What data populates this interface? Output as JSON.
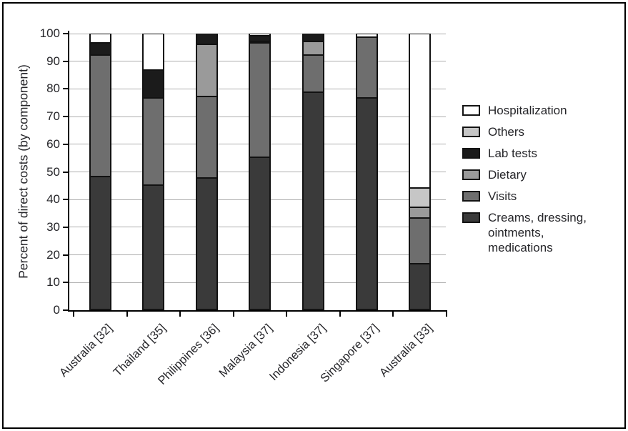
{
  "chart_data": {
    "type": "bar",
    "stacked": true,
    "title": "",
    "xlabel": "",
    "ylabel": "Percent of direct costs (by component)",
    "ylim": [
      0,
      100
    ],
    "yticks": [
      0,
      10,
      20,
      30,
      40,
      50,
      60,
      70,
      80,
      90,
      100
    ],
    "grid": "horizontal",
    "legend_position": "right",
    "categories": [
      "Australia [32]",
      "Thailand [35]",
      "Philippines [36]",
      "Malaysia [37]",
      "Indonesia [37]",
      "Singapore [37]",
      "Australia [33]"
    ],
    "series": [
      {
        "name": "Creams, dressing, ointments, medications",
        "color": "#3a3a3a",
        "values": [
          48,
          45,
          47.5,
          55,
          78.5,
          76.5,
          16.5
        ]
      },
      {
        "name": "Visits",
        "color": "#6e6e6e",
        "values": [
          44,
          31.5,
          29.5,
          41.5,
          13.5,
          22,
          16.5
        ]
      },
      {
        "name": "Dietary",
        "color": "#9a9a9a",
        "values": [
          0,
          0,
          19,
          0.5,
          5,
          0,
          4
        ]
      },
      {
        "name": "Lab tests",
        "color": "#1b1b1b",
        "values": [
          4.5,
          10,
          4,
          2,
          3,
          0,
          0
        ]
      },
      {
        "name": "Others",
        "color": "#c6c6c6",
        "values": [
          0,
          0,
          0,
          0,
          0,
          0,
          7
        ]
      },
      {
        "name": "Hospitalization",
        "color": "#ffffff",
        "values": [
          3.5,
          13.5,
          0,
          1,
          0,
          1.5,
          56
        ]
      }
    ]
  },
  "legend": {
    "items": [
      {
        "label": "Hospitalization",
        "color": "#ffffff"
      },
      {
        "label": "Others",
        "color": "#c6c6c6"
      },
      {
        "label": "Lab tests",
        "color": "#1b1b1b"
      },
      {
        "label": "Dietary",
        "color": "#9a9a9a"
      },
      {
        "label": "Visits",
        "color": "#6e6e6e"
      },
      {
        "label": "Creams, dressing, ointments, medications",
        "color": "#3a3a3a"
      }
    ]
  }
}
